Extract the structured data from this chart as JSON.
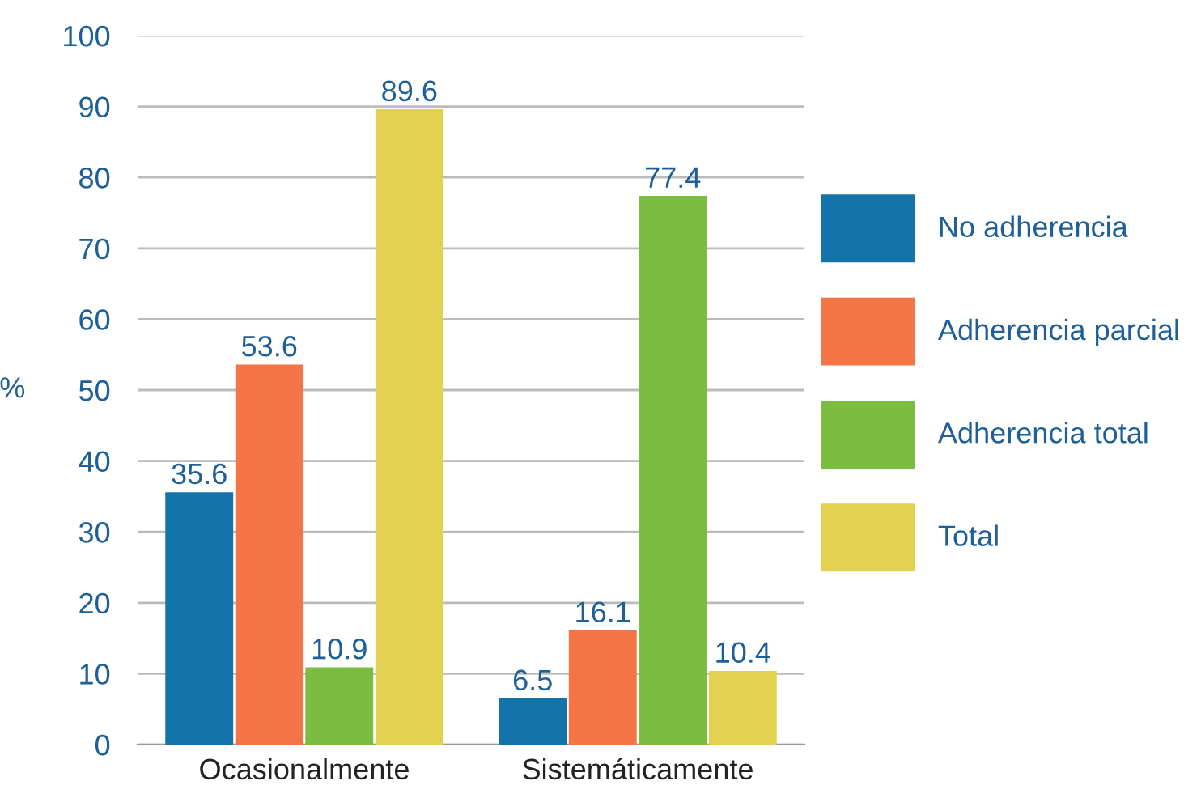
{
  "chart_data": {
    "type": "bar",
    "ylabel": "%",
    "categories": [
      "Ocasionalmente",
      "Sistemáticamente"
    ],
    "series": [
      {
        "name": "No adherencia",
        "color": "#1474aa",
        "values": [
          35.6,
          6.5
        ]
      },
      {
        "name": "Adherencia parcial",
        "color": "#f37545",
        "values": [
          53.6,
          16.1
        ]
      },
      {
        "name": "Adherencia total",
        "color": "#7abd41",
        "values": [
          10.9,
          77.4
        ]
      },
      {
        "name": "Total",
        "color": "#e2d051",
        "values": [
          89.6,
          10.4
        ]
      }
    ],
    "ylim": [
      0,
      100
    ],
    "yticks": [
      0,
      10,
      20,
      30,
      40,
      50,
      60,
      70,
      80,
      90,
      100
    ],
    "grid": "y",
    "legend": "right",
    "data_labels": true
  }
}
